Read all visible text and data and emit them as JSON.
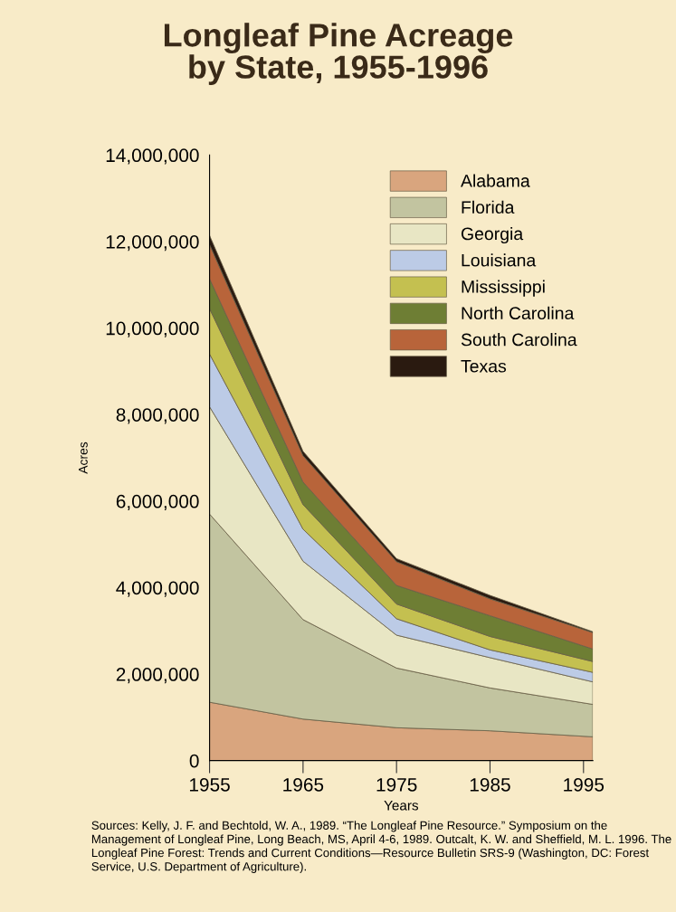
{
  "chart_data": {
    "type": "area",
    "stacked": true,
    "title": "Longleaf Pine Acreage\nby State, 1955-1996",
    "xlabel": "Years",
    "ylabel": "Acres",
    "x": [
      1955,
      1965,
      1975,
      1985,
      1996
    ],
    "series": [
      {
        "name": "Alabama",
        "color": "#d9a57e",
        "values": [
          1350000,
          960000,
          760000,
          690000,
          550000
        ]
      },
      {
        "name": "Florida",
        "color": "#c2c4a0",
        "values": [
          4350000,
          2300000,
          1380000,
          990000,
          750000
        ]
      },
      {
        "name": "Georgia",
        "color": "#e8e6c4",
        "values": [
          2480000,
          1350000,
          760000,
          700000,
          520000
        ]
      },
      {
        "name": "Louisiana",
        "color": "#bccbe6",
        "values": [
          1220000,
          740000,
          380000,
          180000,
          220000
        ]
      },
      {
        "name": "Mississippi",
        "color": "#c4c050",
        "values": [
          1050000,
          570000,
          340000,
          310000,
          250000
        ]
      },
      {
        "name": "North Carolina",
        "color": "#6e7e34",
        "values": [
          690000,
          520000,
          430000,
          480000,
          290000
        ]
      },
      {
        "name": "South Carolina",
        "color": "#b8643a",
        "values": [
          790000,
          610000,
          550000,
          390000,
          380000
        ]
      },
      {
        "name": "Texas",
        "color": "#2a1a10",
        "values": [
          210000,
          100000,
          70000,
          80000,
          20000
        ]
      }
    ],
    "xlim": [
      1955,
      1996
    ],
    "xticks": [
      1955,
      1965,
      1975,
      1985,
      1995
    ],
    "ylim": [
      0,
      14000000
    ],
    "yticks": [
      0,
      {
        "value": 2000000,
        "label": "2,000,000"
      },
      {
        "value": 4000000,
        "label": "4,000,000"
      },
      {
        "value": 6000000,
        "label": "6,000,000"
      },
      {
        "value": 8000000,
        "label": "8,000,000"
      },
      {
        "value": 10000000,
        "label": "10,000,000"
      },
      {
        "value": 12000000,
        "label": "12,000,000"
      },
      {
        "value": 14000000,
        "label": "14,000,000"
      }
    ],
    "grid": false,
    "legend": "top right",
    "annotations": [
      "Sources: Kelly, J. F. and Bechtold, W. A., 1989. “The Longleaf Pine Resource.” Symposium on the Management of Longleaf Pine, Long Beach, MS, April 4-6, 1989. Outcalt, K. W. and Sheffield, M. L. 1996. The Longleaf Pine Forest: Trends and Current Conditions—Resource Bulletin SRS-9 (Washington, DC: Forest Service, U.S. Department of Agriculture)."
    ]
  }
}
